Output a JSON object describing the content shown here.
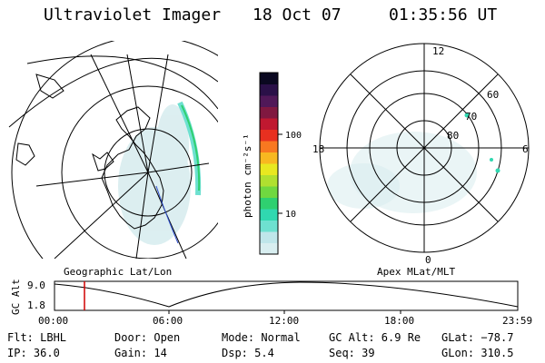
{
  "header": {
    "instrument": "Ultraviolet Imager",
    "date": "18 Oct 07",
    "time": "01:35:56 UT"
  },
  "colorbar": {
    "unit_label": "photon cm⁻²s⁻¹",
    "ticks": [
      "100",
      "10"
    ],
    "colors": [
      "#d8eef0",
      "#bfe6ea",
      "#6ee0d0",
      "#30d8b0",
      "#2fd070",
      "#70d840",
      "#b0e030",
      "#e8e820",
      "#f8b820",
      "#f87820",
      "#e83020",
      "#c01830",
      "#801840",
      "#501858",
      "#2a1048",
      "#0a0820"
    ]
  },
  "left_map": {
    "label": "Geographic Lat/Lon"
  },
  "right_map": {
    "label": "Apex MLat/MLT",
    "mlt_labels": {
      "top": "12",
      "left": "18",
      "right": "6",
      "bottom": "0"
    },
    "mlat_labels": [
      "60",
      "70",
      "80"
    ]
  },
  "altitude_plot": {
    "ylabel": "GC Alt",
    "yticks": [
      "9.0",
      "1.8"
    ],
    "xticks": [
      "00:00",
      "06:00",
      "12:00",
      "18:00",
      "23:59"
    ],
    "current_time_marker": "01:35"
  },
  "info": {
    "flt": "Flt: LBHL",
    "ip": "IP: 36.0",
    "door": "Door: Open",
    "gain": "Gain: 14",
    "mode": "Mode: Normal",
    "dsp": "Dsp:    5.4",
    "gc_alt": "GC Alt: 6.9 Re",
    "seq": "Seq: 39",
    "glat": "GLat: −78.7",
    "glon": "GLon: 310.5"
  }
}
